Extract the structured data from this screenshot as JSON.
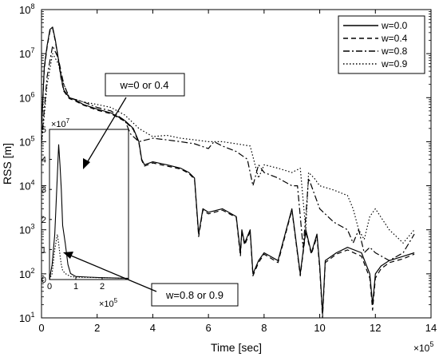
{
  "chart_data": {
    "type": "line",
    "xlabel": "Time [sec]",
    "ylabel": "RSS [m]",
    "x_multiplier_label": "×10",
    "x_multiplier_exp": "5",
    "yscale": "log",
    "xlim": [
      0,
      14
    ],
    "ylim": [
      10,
      100000000
    ],
    "xticks": [
      0,
      2,
      4,
      6,
      8,
      10,
      12,
      14
    ],
    "yticks": [
      {
        "value": 10,
        "base": "10",
        "exp": "1"
      },
      {
        "value": 100,
        "base": "10",
        "exp": "2"
      },
      {
        "value": 1000,
        "base": "10",
        "exp": "3"
      },
      {
        "value": 10000,
        "base": "10",
        "exp": "4"
      },
      {
        "value": 100000,
        "base": "10",
        "exp": "5"
      },
      {
        "value": 1000000,
        "base": "10",
        "exp": "6"
      },
      {
        "value": 10000000,
        "base": "10",
        "exp": "7"
      },
      {
        "value": 100000000,
        "base": "10",
        "exp": "8"
      }
    ],
    "legend_position": "top-right",
    "series": [
      {
        "name": "w=0.0",
        "dash": "solid",
        "x": [
          0,
          0.1,
          0.2,
          0.3,
          0.4,
          0.5,
          0.6,
          0.7,
          0.8,
          1.0,
          1.2,
          1.5,
          2.0,
          2.5,
          3.0,
          3.3,
          3.5,
          3.6,
          3.7,
          4.0,
          4.5,
          5.0,
          5.3,
          5.5,
          5.65,
          5.8,
          6.0,
          6.5,
          7.0,
          7.15,
          7.2,
          7.3,
          7.5,
          7.6,
          7.8,
          8.0,
          8.5,
          9.0,
          9.3,
          9.5,
          9.7,
          9.9,
          10.0,
          10.1,
          10.2,
          10.6,
          11.0,
          11.5,
          11.8,
          11.9,
          12.0,
          12.2,
          12.5,
          13.0,
          13.4
        ],
        "y": [
          200000,
          5000000,
          15000000,
          35000000,
          40000000,
          20000000,
          8000000,
          3000000,
          1500000,
          1000000,
          900000,
          700000,
          550000,
          450000,
          300000,
          200000,
          100000,
          40000,
          30000,
          35000,
          30000,
          25000,
          20000,
          15000,
          800,
          3000,
          2500,
          3000,
          2000,
          300,
          1000,
          500,
          1000,
          100,
          200,
          300,
          200,
          3000,
          100,
          1000,
          300,
          800,
          150,
          12,
          200,
          300,
          400,
          300,
          100,
          20,
          100,
          150,
          200,
          250,
          300
        ]
      },
      {
        "name": "w=0.4",
        "dash": "dashed",
        "x": [
          0,
          0.1,
          0.2,
          0.3,
          0.4,
          0.5,
          0.6,
          0.7,
          0.8,
          1.0,
          1.2,
          1.5,
          2.0,
          2.5,
          3.0,
          3.3,
          3.5,
          3.6,
          3.7,
          4.0,
          4.5,
          5.0,
          5.3,
          5.5,
          5.65,
          5.8,
          6.0,
          6.5,
          7.0,
          7.15,
          7.2,
          7.3,
          7.5,
          7.6,
          7.8,
          8.0,
          8.5,
          9.0,
          9.3,
          9.5,
          9.7,
          9.9,
          10.0,
          10.1,
          10.2,
          10.6,
          11.0,
          11.5,
          11.8,
          11.9,
          12.0,
          12.2,
          12.5,
          13.0,
          13.4
        ],
        "y": [
          180000,
          4500000,
          14000000,
          32000000,
          38000000,
          19000000,
          7500000,
          2800000,
          1400000,
          950000,
          850000,
          680000,
          520000,
          430000,
          290000,
          190000,
          95000,
          38000,
          28000,
          33000,
          28000,
          24000,
          19000,
          14000,
          700,
          2800,
          2300,
          2800,
          1900,
          250,
          900,
          450,
          900,
          90,
          180,
          280,
          180,
          2800,
          90,
          900,
          280,
          700,
          130,
          10,
          180,
          280,
          350,
          250,
          80,
          15,
          80,
          130,
          180,
          220,
          280
        ]
      },
      {
        "name": "w=0.8",
        "dash": "dashdot",
        "x": [
          0,
          0.2,
          0.4,
          0.6,
          0.8,
          1.0,
          1.5,
          2.0,
          2.5,
          3.0,
          3.2,
          3.5,
          4.0,
          4.5,
          5.0,
          5.5,
          6.0,
          6.2,
          6.5,
          7.0,
          7.4,
          7.6,
          7.8,
          8.0,
          8.5,
          9.0,
          9.2,
          9.4,
          9.5,
          9.6,
          10.0,
          10.5,
          11.0,
          11.2,
          11.4,
          11.6,
          11.8,
          12.0,
          12.5,
          13.0,
          13.4
        ],
        "y": [
          100000,
          3000000,
          15000000,
          8000000,
          2000000,
          1000000,
          800000,
          600000,
          500000,
          300000,
          150000,
          100000,
          120000,
          110000,
          100000,
          90000,
          70000,
          100000,
          80000,
          60000,
          40000,
          10000,
          30000,
          20000,
          15000,
          10000,
          10000,
          400,
          2000,
          15000,
          3000,
          1500,
          1000,
          500,
          1000,
          300,
          400,
          300,
          200,
          300,
          800
        ]
      },
      {
        "name": "w=0.9",
        "dash": "dotted",
        "x": [
          0,
          0.2,
          0.4,
          0.6,
          0.8,
          1.0,
          1.5,
          2.0,
          2.5,
          3.0,
          3.5,
          4.0,
          4.5,
          5.0,
          5.5,
          6.0,
          6.5,
          7.0,
          7.5,
          7.8,
          8.0,
          8.5,
          9.0,
          9.3,
          9.5,
          9.6,
          9.8,
          10.0,
          10.5,
          11.0,
          11.2,
          11.4,
          11.6,
          11.8,
          12.0,
          12.5,
          13.0,
          13.4
        ],
        "y": [
          80000,
          2000000,
          10000000,
          6000000,
          2000000,
          1000000,
          800000,
          700000,
          600000,
          400000,
          200000,
          130000,
          140000,
          120000,
          110000,
          100000,
          100000,
          90000,
          80000,
          15000,
          30000,
          25000,
          20000,
          25000,
          1000,
          20000,
          15000,
          10000,
          8000,
          6000,
          3000,
          1000,
          600,
          2000,
          3000,
          1000,
          500,
          1000
        ]
      }
    ],
    "annotations": [
      {
        "text": "w=0 or 0.4"
      },
      {
        "text": "w=0.8 or 0.9"
      }
    ],
    "inset": {
      "xlim": [
        0,
        3
      ],
      "ylim": [
        0,
        50000000
      ],
      "xticks": [
        0,
        1,
        2
      ],
      "yticks": [
        0,
        1,
        2,
        3,
        4,
        5
      ],
      "y_multiplier_exp": "7",
      "x_multiplier_exp": "5",
      "x": [
        0,
        0.1,
        0.2,
        0.3,
        0.35,
        0.4,
        0.45,
        0.5,
        0.6,
        0.7,
        0.8,
        1.0,
        1.5,
        2.0,
        2.5,
        3.0
      ],
      "y_w04": [
        0,
        5000000,
        15000000,
        35000000,
        45000000,
        38000000,
        30000000,
        18000000,
        12000000,
        5000000,
        2000000,
        1000000,
        800000,
        600000,
        500000,
        400000
      ],
      "y_w09": [
        0,
        2000000,
        10000000,
        15000000,
        12000000,
        8000000,
        5000000,
        3000000,
        2000000,
        1500000,
        1000000,
        800000,
        700000,
        600000,
        500000,
        400000
      ]
    }
  }
}
